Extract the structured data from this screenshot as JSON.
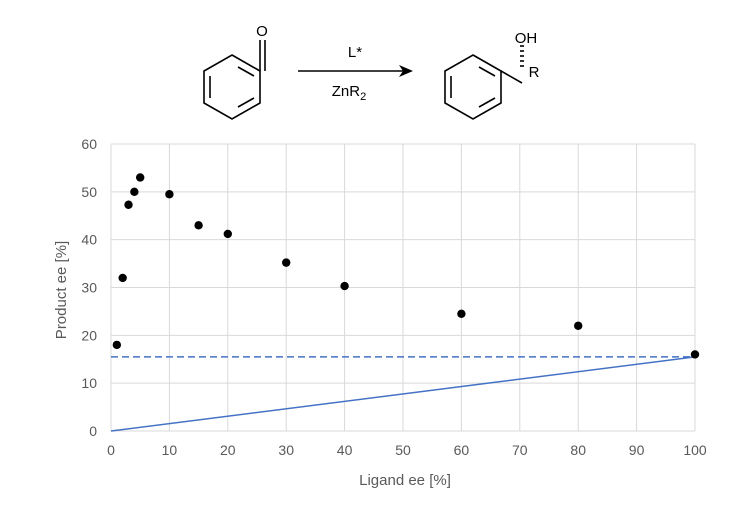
{
  "reaction": {
    "reagent_above": "L*",
    "reagent_below_main": "ZnR",
    "reagent_below_subscript": "2",
    "product_hydroxyl": "OH",
    "product_substituent": "R",
    "reactant_carbonyl_oxygen": "O"
  },
  "chart_data": {
    "type": "scatter",
    "title": "",
    "xlabel": "Ligand ee [%]",
    "ylabel": "Product ee [%]",
    "xlim": [
      0,
      100
    ],
    "ylim": [
      0,
      60
    ],
    "xticks": [
      0,
      10,
      20,
      30,
      40,
      50,
      60,
      70,
      80,
      90,
      100
    ],
    "yticks": [
      0,
      10,
      20,
      30,
      40,
      50,
      60
    ],
    "grid": true,
    "legend": "none",
    "series": [
      {
        "type": "scatter",
        "color": "#000000",
        "x": [
          1,
          2,
          3,
          4,
          5,
          10,
          15,
          20,
          30,
          40,
          60,
          80,
          100
        ],
        "y": [
          18,
          32,
          47.3,
          50,
          53,
          49.5,
          43,
          41.2,
          35.2,
          30.3,
          24.5,
          22,
          16
        ]
      },
      {
        "type": "line",
        "style": "solid",
        "color": "#4472C4",
        "x": [
          0,
          100
        ],
        "y": [
          0,
          15.5
        ]
      },
      {
        "type": "line",
        "style": "dashed",
        "color": "#4472C4",
        "x": [
          0,
          100
        ],
        "y": [
          15.5,
          15.5
        ]
      }
    ]
  }
}
